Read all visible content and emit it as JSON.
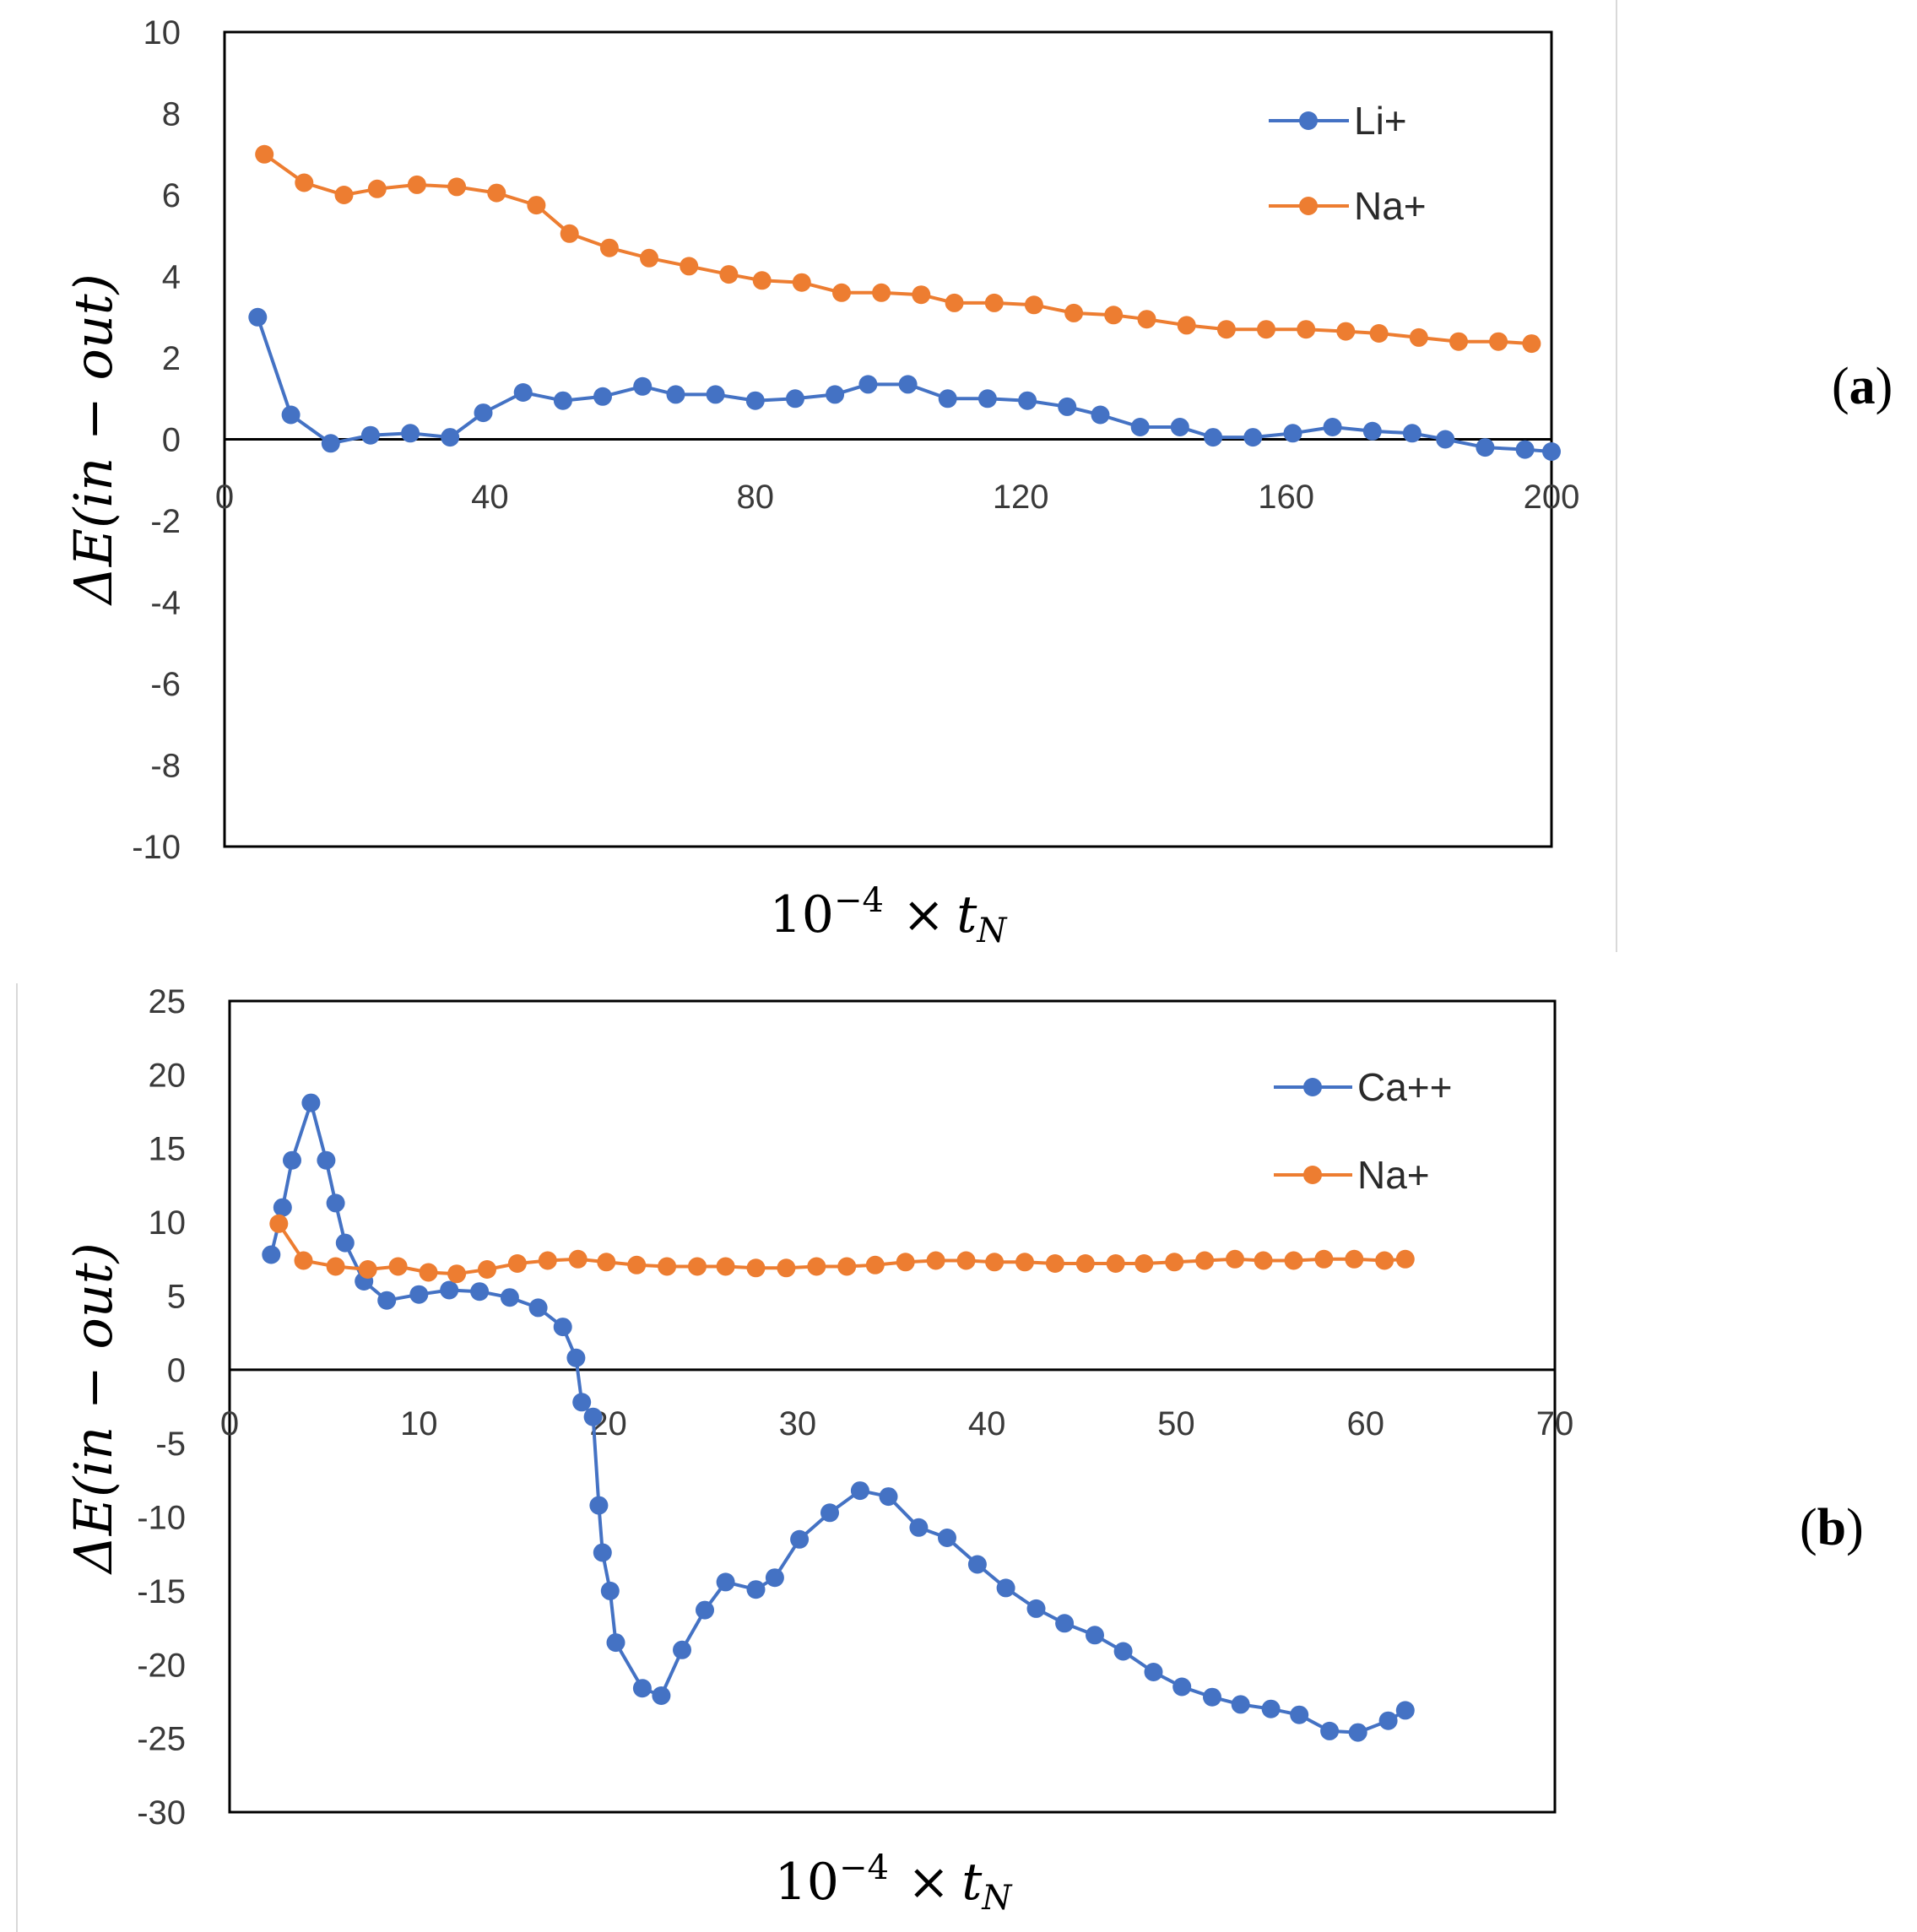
{
  "panels": {
    "a": {
      "label_open": "(",
      "label_letter": "a",
      "label_close": ")"
    },
    "b": {
      "label_open": "(",
      "label_letter": "b",
      "label_close": ")"
    }
  },
  "axis_text": {
    "ylabel": "ΔE(in − out)",
    "xlabel_base": "10",
    "xlabel_exp": "−4",
    "xlabel_times": "×",
    "xlabel_var": "t",
    "xlabel_sub": "N"
  },
  "colors": {
    "blue": "#4472C4",
    "orange": "#ED7D31",
    "axis": "#000000"
  },
  "chart_data": [
    {
      "type": "line",
      "panel": "a",
      "xlabel": "10^-4 × t_N",
      "ylabel": "ΔE(in − out)",
      "xlim": [
        0,
        200
      ],
      "ylim": [
        -10,
        10
      ],
      "xticks": [
        "0",
        "40",
        "80",
        "120",
        "160",
        "200"
      ],
      "yticks": [
        "10",
        "8",
        "6",
        "4",
        "2",
        "0",
        "-2",
        "-4",
        "-6",
        "-8",
        "-10"
      ],
      "legend_position": "top-right",
      "series": [
        {
          "name": "Li+",
          "color": "#4472C4",
          "x": [
            5,
            10,
            16,
            22,
            28,
            34,
            39,
            45,
            51,
            57,
            63,
            68,
            74,
            80,
            86,
            92,
            97,
            103,
            109,
            115,
            121,
            127,
            132,
            138,
            144,
            149,
            155,
            161,
            167,
            173,
            179,
            184,
            190,
            196,
            200
          ],
          "y": [
            3.0,
            0.6,
            -0.1,
            0.1,
            0.15,
            0.05,
            0.65,
            1.15,
            0.95,
            1.05,
            1.3,
            1.1,
            1.1,
            0.95,
            1.0,
            1.1,
            1.35,
            1.35,
            1.0,
            1.0,
            0.95,
            0.8,
            0.6,
            0.3,
            0.3,
            0.05,
            0.05,
            0.15,
            0.3,
            0.2,
            0.15,
            0.0,
            -0.2,
            -0.25,
            -0.3
          ]
        },
        {
          "name": "Na+",
          "color": "#ED7D31",
          "x": [
            6,
            12,
            18,
            23,
            29,
            35,
            41,
            47,
            52,
            58,
            64,
            70,
            76,
            81,
            87,
            93,
            99,
            105,
            110,
            116,
            122,
            128,
            134,
            139,
            145,
            151,
            157,
            163,
            169,
            174,
            180,
            186,
            192,
            197
          ],
          "y": [
            7.0,
            6.3,
            6.0,
            6.15,
            6.25,
            6.2,
            6.05,
            5.75,
            5.05,
            4.7,
            4.45,
            4.25,
            4.05,
            3.9,
            3.85,
            3.6,
            3.6,
            3.55,
            3.35,
            3.35,
            3.3,
            3.1,
            3.05,
            2.95,
            2.8,
            2.7,
            2.7,
            2.7,
            2.65,
            2.6,
            2.5,
            2.4,
            2.4,
            2.35
          ]
        }
      ]
    },
    {
      "type": "line",
      "panel": "b",
      "xlabel": "10^-4 × t_N",
      "ylabel": "ΔE(in − out)",
      "xlim": [
        0,
        70
      ],
      "ylim": [
        -30,
        25
      ],
      "xticks": [
        "0",
        "10",
        "20",
        "30",
        "40",
        "50",
        "60",
        "70"
      ],
      "yticks": [
        "25",
        "20",
        "15",
        "10",
        "5",
        "0",
        "-5",
        "-10",
        "-15",
        "-20",
        "-25",
        "-30"
      ],
      "legend_position": "top-right",
      "series": [
        {
          "name": "Ca++",
          "color": "#4472C4",
          "x": [
            2.2,
            2.8,
            3.3,
            4.3,
            5.1,
            5.6,
            6.1,
            7.1,
            8.3,
            10.0,
            11.6,
            13.2,
            14.8,
            16.3,
            17.6,
            18.3,
            18.6,
            19.2,
            19.5,
            19.7,
            20.1,
            20.4,
            21.8,
            22.8,
            23.9,
            25.1,
            26.2,
            27.8,
            28.8,
            30.1,
            31.7,
            33.3,
            34.8,
            36.4,
            37.9,
            39.5,
            41.0,
            42.6,
            44.1,
            45.7,
            47.2,
            48.8,
            50.3,
            51.9,
            53.4,
            55.0,
            56.5,
            58.1,
            59.6,
            61.2,
            62.1
          ],
          "y": [
            7.8,
            11.0,
            14.2,
            18.1,
            14.2,
            11.3,
            8.6,
            6.0,
            4.7,
            5.1,
            5.4,
            5.3,
            4.9,
            4.2,
            2.9,
            0.8,
            -2.2,
            -3.2,
            -9.2,
            -12.4,
            -15.0,
            -18.5,
            -21.6,
            -22.1,
            -19.0,
            -16.3,
            -14.4,
            -14.9,
            -14.1,
            -11.5,
            -9.7,
            -8.2,
            -8.6,
            -10.7,
            -11.4,
            -13.2,
            -14.8,
            -16.2,
            -17.2,
            -18.0,
            -19.1,
            -20.5,
            -21.5,
            -22.2,
            -22.7,
            -23.0,
            -23.4,
            -24.5,
            -24.6,
            -23.8,
            -23.1
          ]
        },
        {
          "name": "Na+",
          "color": "#ED7D31",
          "x": [
            2.6,
            3.9,
            5.6,
            7.3,
            8.9,
            10.5,
            12.0,
            13.6,
            15.2,
            16.8,
            18.4,
            19.9,
            21.5,
            23.1,
            24.7,
            26.2,
            27.8,
            29.4,
            31.0,
            32.6,
            34.1,
            35.7,
            37.3,
            38.9,
            40.4,
            42.0,
            43.6,
            45.2,
            46.8,
            48.3,
            49.9,
            51.5,
            53.1,
            54.6,
            56.2,
            57.8,
            59.4,
            61.0,
            62.1
          ],
          "y": [
            9.9,
            7.4,
            7.0,
            6.8,
            7.0,
            6.6,
            6.5,
            6.8,
            7.2,
            7.4,
            7.5,
            7.3,
            7.1,
            7.0,
            7.0,
            7.0,
            6.9,
            6.9,
            7.0,
            7.0,
            7.1,
            7.3,
            7.4,
            7.4,
            7.3,
            7.3,
            7.2,
            7.2,
            7.2,
            7.2,
            7.3,
            7.4,
            7.5,
            7.4,
            7.4,
            7.5,
            7.5,
            7.4,
            7.5
          ]
        }
      ]
    }
  ]
}
